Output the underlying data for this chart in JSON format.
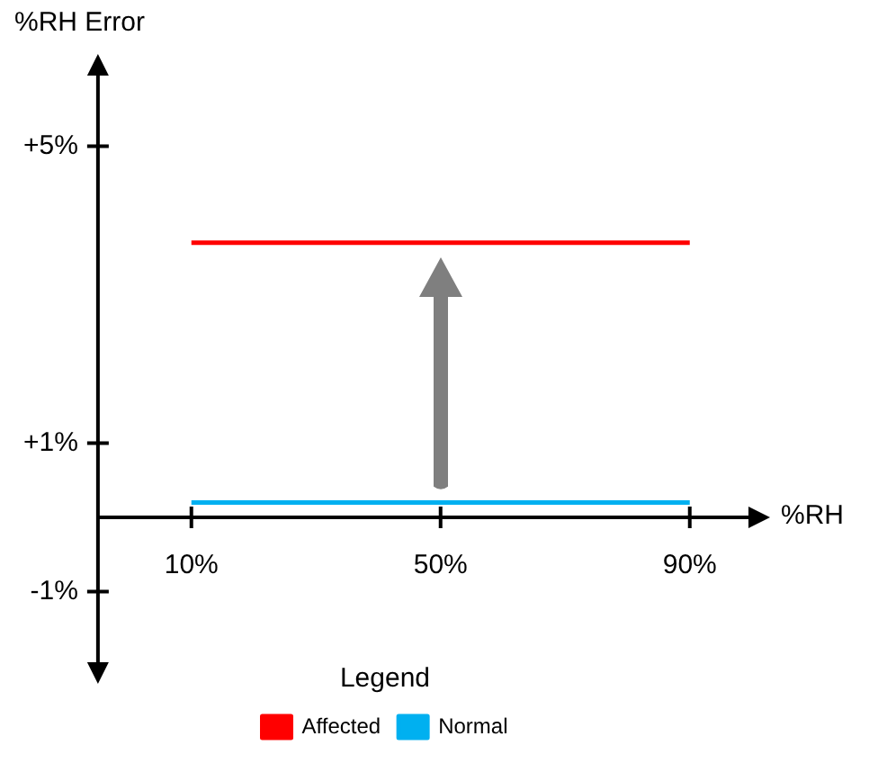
{
  "chart_data": {
    "type": "line",
    "xlabel": "%RH",
    "ylabel": "%RH Error",
    "x": [
      10,
      50,
      90
    ],
    "series": [
      {
        "name": "Affected",
        "color": "#ff0000",
        "values": [
          3.7,
          3.7,
          3.7
        ]
      },
      {
        "name": "Normal",
        "color": "#00b0f0",
        "values": [
          0.2,
          0.2,
          0.2
        ]
      }
    ],
    "xlim": [
      -5,
      100
    ],
    "xticks": [
      {
        "value": 10,
        "label": "10%"
      },
      {
        "value": 50,
        "label": "50%"
      },
      {
        "value": 90,
        "label": "90%"
      }
    ],
    "ylim": [
      -2,
      6
    ],
    "yticks": [
      {
        "value": -1,
        "label": "-1%"
      },
      {
        "value": 1,
        "label": "+1%"
      },
      {
        "value": 5,
        "label": "+5%"
      }
    ],
    "legend": "bottom",
    "legend_title": "Legend",
    "grid": false,
    "marker": "none",
    "line_style": "solid"
  }
}
